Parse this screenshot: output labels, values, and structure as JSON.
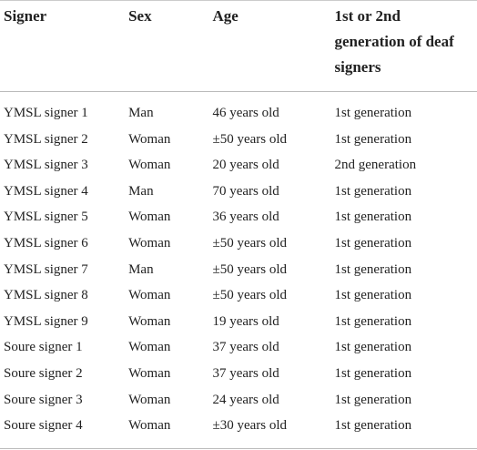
{
  "table": {
    "header": [
      "Signer",
      "Sex",
      "Age",
      "1st or 2nd generation of deaf signers"
    ],
    "rows": [
      [
        "YMSL signer 1",
        "Man",
        "46 years old",
        "1st generation"
      ],
      [
        "YMSL signer 2",
        "Woman",
        "±50 years old",
        "1st generation"
      ],
      [
        "YMSL signer 3",
        "Woman",
        "20 years old",
        "2nd generation"
      ],
      [
        "YMSL signer 4",
        "Man",
        "70 years old",
        "1st generation"
      ],
      [
        "YMSL signer 5",
        "Woman",
        "36 years old",
        "1st generation"
      ],
      [
        "YMSL signer 6",
        "Woman",
        "±50 years old",
        "1st generation"
      ],
      [
        "YMSL signer 7",
        "Man",
        "±50 years old",
        "1st generation"
      ],
      [
        "YMSL signer 8",
        "Woman",
        "±50 years old",
        "1st generation"
      ],
      [
        "YMSL signer 9",
        "Woman",
        "19 years old",
        "1st generation"
      ],
      [
        "Soure signer 1",
        "Woman",
        "37 years old",
        "1st generation"
      ],
      [
        "Soure signer 2",
        "Woman",
        "37 years old",
        "1st generation"
      ],
      [
        "Soure signer 3",
        "Woman",
        "24 years old",
        "1st generation"
      ],
      [
        "Soure signer 4",
        "Woman",
        "±30 years old",
        "1st generation"
      ]
    ]
  }
}
